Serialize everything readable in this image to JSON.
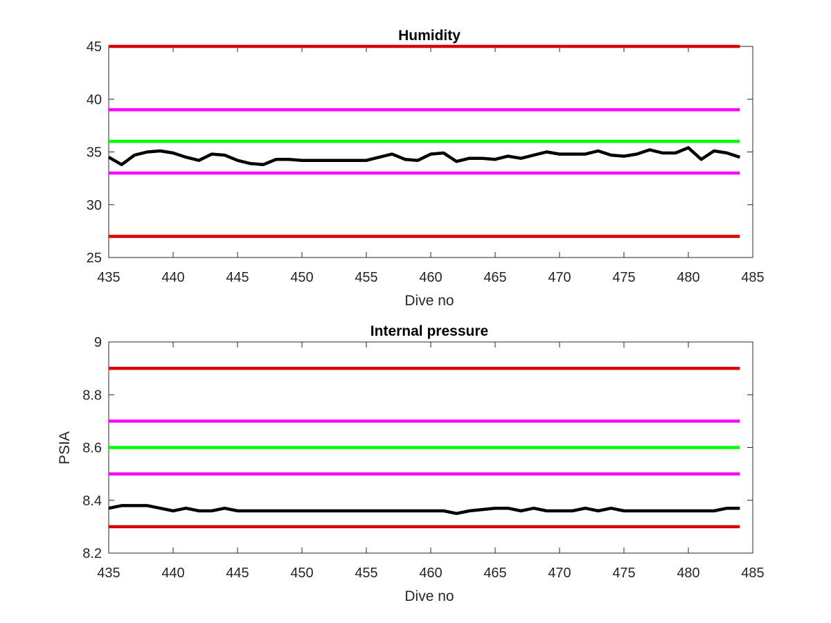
{
  "colors": {
    "red": "#d90000",
    "magenta": "#ff00ff",
    "green": "#00ff00",
    "black": "#000000",
    "axes": "#262626"
  },
  "chart_data": [
    {
      "type": "line",
      "title": "Humidity",
      "xlabel": "Dive no",
      "ylabel": "",
      "xlim": [
        435,
        485
      ],
      "ylim": [
        25,
        45
      ],
      "x_ticks": [
        435,
        440,
        445,
        450,
        455,
        460,
        465,
        470,
        475,
        480,
        485
      ],
      "y_ticks": [
        25,
        30,
        35,
        40,
        45
      ],
      "grid": false,
      "legend": "none",
      "reference_lines": [
        {
          "y": 45,
          "color": "red"
        },
        {
          "y": 39,
          "color": "magenta"
        },
        {
          "y": 36,
          "color": "green"
        },
        {
          "y": 33,
          "color": "magenta"
        },
        {
          "y": 27,
          "color": "red"
        }
      ],
      "series": [
        {
          "color": "black",
          "x": [
            435,
            436,
            437,
            438,
            439,
            440,
            441,
            442,
            443,
            444,
            445,
            446,
            447,
            448,
            449,
            450,
            451,
            452,
            453,
            454,
            455,
            456,
            457,
            458,
            459,
            460,
            461,
            462,
            463,
            464,
            465,
            466,
            467,
            468,
            469,
            470,
            471,
            472,
            473,
            474,
            475,
            476,
            477,
            478,
            479,
            480,
            481,
            482,
            483,
            484
          ],
          "values": [
            34.5,
            33.8,
            34.7,
            35.0,
            35.1,
            34.9,
            34.5,
            34.2,
            34.8,
            34.7,
            34.2,
            33.9,
            33.8,
            34.3,
            34.3,
            34.2,
            34.2,
            34.2,
            34.2,
            34.2,
            34.2,
            34.5,
            34.8,
            34.3,
            34.2,
            34.8,
            34.9,
            34.1,
            34.4,
            34.4,
            34.3,
            34.6,
            34.4,
            34.7,
            35.0,
            34.8,
            34.8,
            34.8,
            35.1,
            34.7,
            34.6,
            34.8,
            35.2,
            34.9,
            34.9,
            35.4,
            34.3,
            35.1,
            34.9,
            34.5
          ]
        }
      ]
    },
    {
      "type": "line",
      "title": "Internal pressure",
      "xlabel": "Dive no",
      "ylabel": "PSIA",
      "xlim": [
        435,
        485
      ],
      "ylim": [
        8.2,
        9.0
      ],
      "x_ticks": [
        435,
        440,
        445,
        450,
        455,
        460,
        465,
        470,
        475,
        480,
        485
      ],
      "y_ticks": [
        8.2,
        8.4,
        8.6,
        8.8,
        9
      ],
      "grid": false,
      "legend": "none",
      "reference_lines": [
        {
          "y": 8.9,
          "color": "red"
        },
        {
          "y": 8.7,
          "color": "magenta"
        },
        {
          "y": 8.6,
          "color": "green"
        },
        {
          "y": 8.5,
          "color": "magenta"
        },
        {
          "y": 8.3,
          "color": "red"
        }
      ],
      "series": [
        {
          "color": "black",
          "x": [
            435,
            436,
            437,
            438,
            439,
            440,
            441,
            442,
            443,
            444,
            445,
            446,
            447,
            448,
            449,
            450,
            451,
            452,
            453,
            454,
            455,
            456,
            457,
            458,
            459,
            460,
            461,
            462,
            463,
            464,
            465,
            466,
            467,
            468,
            469,
            470,
            471,
            472,
            473,
            474,
            475,
            476,
            477,
            478,
            479,
            480,
            481,
            482,
            483,
            484
          ],
          "values": [
            8.37,
            8.38,
            8.38,
            8.38,
            8.37,
            8.36,
            8.37,
            8.36,
            8.36,
            8.37,
            8.36,
            8.36,
            8.36,
            8.36,
            8.36,
            8.36,
            8.36,
            8.36,
            8.36,
            8.36,
            8.36,
            8.36,
            8.36,
            8.36,
            8.36,
            8.36,
            8.36,
            8.35,
            8.36,
            8.365,
            8.37,
            8.37,
            8.36,
            8.37,
            8.36,
            8.36,
            8.36,
            8.37,
            8.36,
            8.37,
            8.36,
            8.36,
            8.36,
            8.36,
            8.36,
            8.36,
            8.36,
            8.36,
            8.37,
            8.37
          ]
        }
      ]
    }
  ]
}
